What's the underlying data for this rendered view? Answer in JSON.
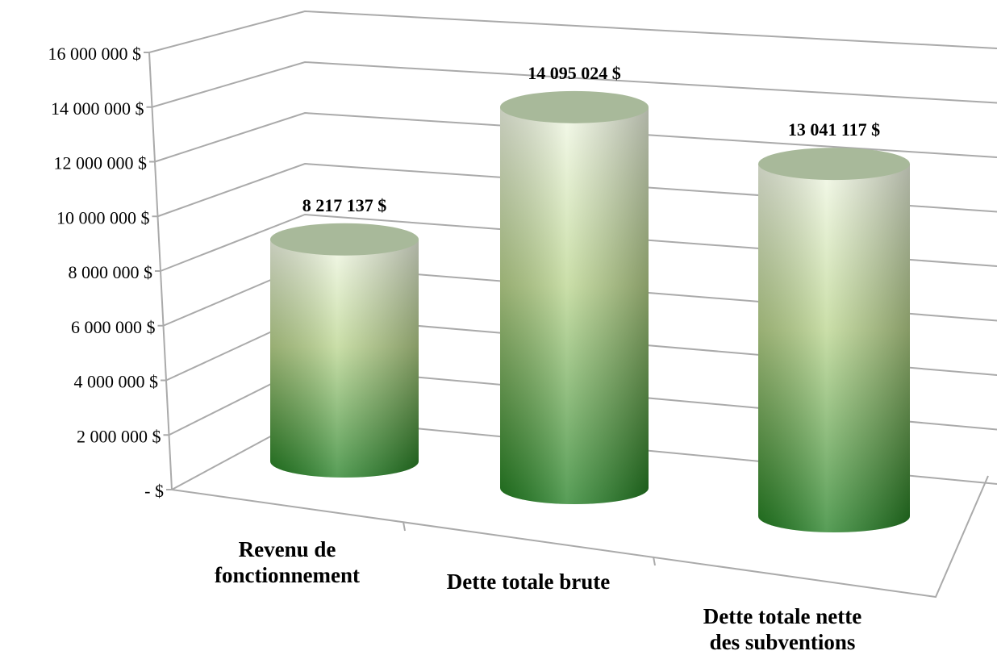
{
  "chart_data": {
    "type": "bar3d",
    "categories": [
      "Revenu de\nfonctionnement",
      "Dette totale brute",
      "Dette totale nette\ndes subventions"
    ],
    "values": [
      8217137,
      14095024,
      13041117
    ],
    "value_labels": [
      "8 217 137  $",
      "14 095 024  $",
      "13 041 117  $"
    ],
    "ylim": [
      0,
      16000000
    ],
    "yticks": [
      {
        "value": 0,
        "label": "-  $"
      },
      {
        "value": 2000000,
        "label": "2 000 000  $"
      },
      {
        "value": 4000000,
        "label": "4 000 000  $"
      },
      {
        "value": 6000000,
        "label": "6 000 000  $"
      },
      {
        "value": 8000000,
        "label": "8 000 000  $"
      },
      {
        "value": 10000000,
        "label": "10 000 000  $"
      },
      {
        "value": 12000000,
        "label": "12 000 000  $"
      },
      {
        "value": 14000000,
        "label": "14 000 000  $"
      },
      {
        "value": 16000000,
        "label": "16 000 000  $"
      }
    ],
    "grid": true
  }
}
